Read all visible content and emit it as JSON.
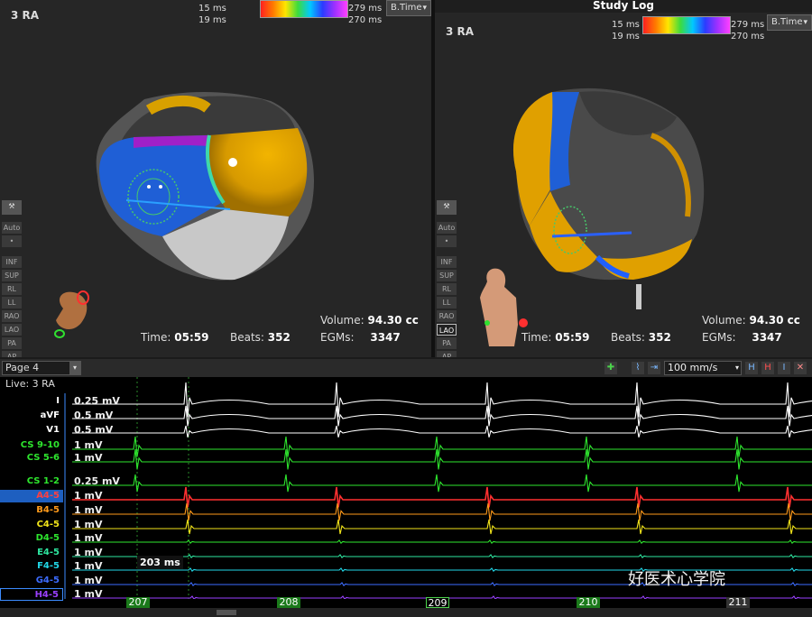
{
  "left_map": {
    "title": "3 RA",
    "legend": {
      "min_top": "15 ms",
      "min_bottom": "19 ms",
      "max_top": "279 ms",
      "max_bottom": "270 ms"
    },
    "map_type": "B.Time",
    "time_label": "Time:",
    "time": "05:59",
    "beats_label": "Beats:",
    "beats": "352",
    "volume_label": "Volume:",
    "volume": "94.30 cc",
    "egms_label": "EGMs:",
    "egms": "3347"
  },
  "right_map": {
    "title": "3 RA",
    "header": "Study Log",
    "legend": {
      "min_top": "15 ms",
      "min_bottom": "19 ms",
      "max_top": "279 ms",
      "max_bottom": "270 ms"
    },
    "map_type": "B.Time",
    "time_label": "Time:",
    "time": "05:59",
    "beats_label": "Beats:",
    "beats": "352",
    "volume_label": "Volume:",
    "volume": "94.30 cc",
    "egms_label": "EGMs:",
    "egms": "3347"
  },
  "view_tools": {
    "auto": "Auto",
    "dot": "•",
    "views": [
      "INF",
      "SUP",
      "RL",
      "LL",
      "RAO",
      "LAO",
      "PA",
      "AP"
    ],
    "active_right": "LAO"
  },
  "egm": {
    "page": "Page 4",
    "live": "Live: 3 RA",
    "sweep_speed": "100 mm/s",
    "caliper": "203 ms",
    "watermark": "好医术心学院",
    "leads": [
      {
        "name": "I",
        "gain": "0.25 mV",
        "color": "#ffffff"
      },
      {
        "name": "aVF",
        "gain": "0.5 mV",
        "color": "#ffffff"
      },
      {
        "name": "V1",
        "gain": "0.5 mV",
        "color": "#ffffff"
      },
      {
        "name": "CS 9-10",
        "gain": "1 mV",
        "color": "#2ee62e"
      },
      {
        "name": "CS 5-6",
        "gain": "1 mV",
        "color": "#2ee62e"
      },
      {
        "name": "CS 1-2",
        "gain": "0.25 mV",
        "color": "#2ee62e"
      },
      {
        "name": "A4-5",
        "gain": "1 mV",
        "color": "#ff3030"
      },
      {
        "name": "B4-5",
        "gain": "1 mV",
        "color": "#ff9a1a"
      },
      {
        "name": "C4-5",
        "gain": "1 mV",
        "color": "#f2e51a"
      },
      {
        "name": "D4-5",
        "gain": "1 mV",
        "color": "#2ee62e"
      },
      {
        "name": "E4-5",
        "gain": "1 mV",
        "color": "#2ee6a0"
      },
      {
        "name": "F4-5",
        "gain": "1 mV",
        "color": "#22d8e8"
      },
      {
        "name": "G4-5",
        "gain": "1 mV",
        "color": "#3c6cff"
      },
      {
        "name": "H4-5",
        "gain": "1 mV",
        "color": "#9a40ff"
      }
    ],
    "beats": [
      "207",
      "208",
      "209",
      "210",
      "211"
    ]
  }
}
